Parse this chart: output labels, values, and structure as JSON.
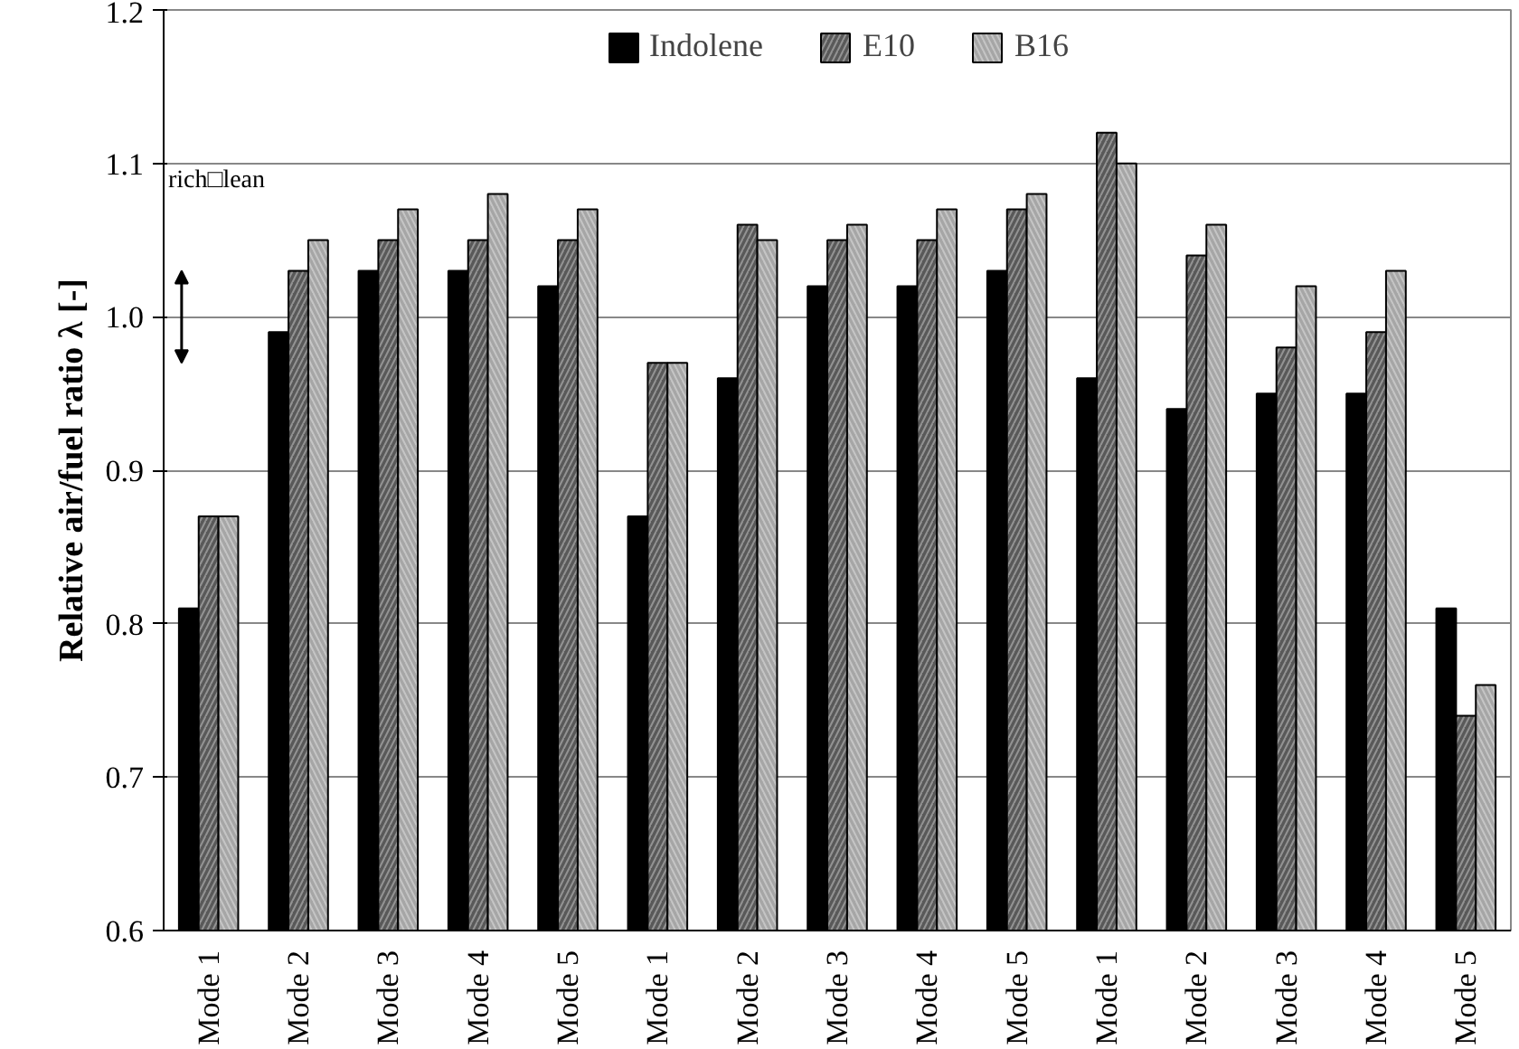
{
  "chart_data": {
    "type": "bar",
    "ylabel": "Relative air/fuel ratio λ [-]",
    "categories": [
      "Mode 1",
      "Mode 2",
      "Mode 3",
      "Mode 4",
      "Mode 5",
      "Mode 1",
      "Mode 2",
      "Mode 3",
      "Mode 4",
      "Mode 5",
      "Mode 1",
      "Mode 2",
      "Mode 3",
      "Mode 4",
      "Mode 5"
    ],
    "series": [
      {
        "name": "Indolene",
        "color": "#000000",
        "values": [
          0.81,
          0.99,
          1.03,
          1.03,
          1.02,
          0.87,
          0.96,
          1.02,
          1.02,
          1.03,
          0.96,
          0.94,
          0.95,
          0.95,
          0.81
        ]
      },
      {
        "name": "E10",
        "color": "#595959",
        "values": [
          0.87,
          1.03,
          1.05,
          1.05,
          1.05,
          0.97,
          1.06,
          1.05,
          1.05,
          1.07,
          1.12,
          1.04,
          0.98,
          0.99,
          0.74
        ]
      },
      {
        "name": "B16",
        "color": "#a6a6a6",
        "values": [
          0.87,
          1.05,
          1.07,
          1.08,
          1.07,
          0.97,
          1.05,
          1.06,
          1.07,
          1.08,
          1.1,
          1.06,
          1.02,
          1.03,
          0.76
        ]
      }
    ],
    "ylim": [
      0.6,
      1.2
    ],
    "yticks": [
      0.6,
      0.7,
      0.8,
      0.9,
      {
        "value": 1,
        "label": "1.0"
      },
      1.1,
      1.2
    ],
    "grid": "y",
    "legend": "top",
    "annotations": [
      "rich□lean"
    ]
  }
}
